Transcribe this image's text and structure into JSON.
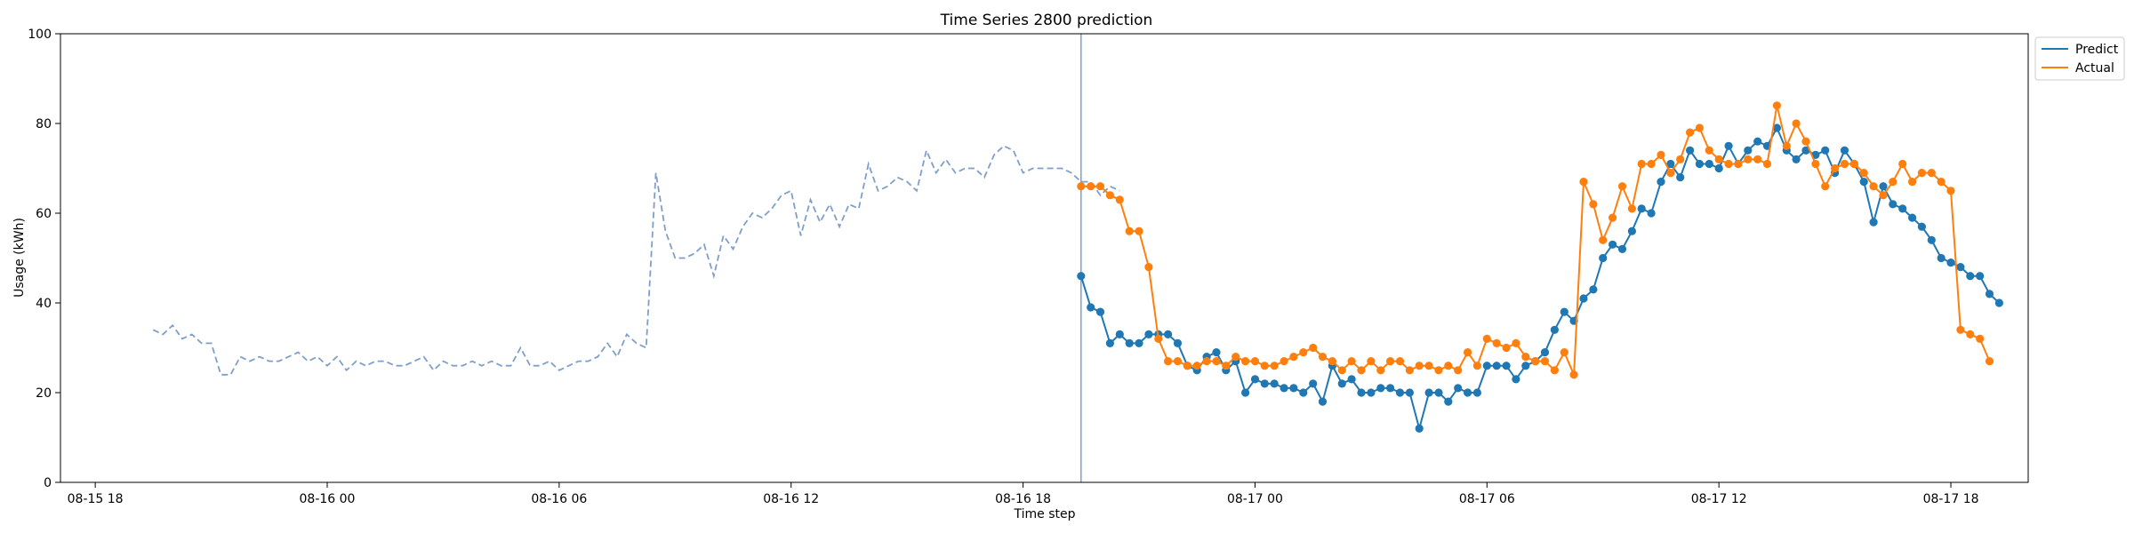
{
  "chart_data": {
    "type": "line",
    "title": "Time Series 2800 prediction",
    "xlabel": "Time step",
    "ylabel": "Usage (kWh)",
    "ylim": [
      0,
      100
    ],
    "yticks": [
      0,
      20,
      40,
      60,
      80,
      100
    ],
    "x_range": [
      "08-15 17:06",
      "08-17 20:00"
    ],
    "xticks": [
      {
        "time": "08-15 18:00",
        "label": "08-15 18"
      },
      {
        "time": "08-16 00:00",
        "label": "08-16 00"
      },
      {
        "time": "08-16 06:00",
        "label": "08-16 06"
      },
      {
        "time": "08-16 12:00",
        "label": "08-16 12"
      },
      {
        "time": "08-16 18:00",
        "label": "08-16 18"
      },
      {
        "time": "08-17 00:00",
        "label": "08-17 00"
      },
      {
        "time": "08-17 06:00",
        "label": "08-17 06"
      },
      {
        "time": "08-17 12:00",
        "label": "08-17 12"
      },
      {
        "time": "08-17 18:00",
        "label": "08-17 18"
      }
    ],
    "grid": false,
    "legend_position": "outside top-right",
    "split_time": "08-16 19:30",
    "history": {
      "start": "08-15 19:30",
      "step_minutes": 15,
      "style": "dashed",
      "color": "#7f9fc8",
      "values": [
        34,
        33,
        35,
        32,
        33,
        31,
        31,
        24,
        24,
        28,
        27,
        28,
        27,
        27,
        28,
        29,
        27,
        28,
        26,
        28,
        25,
        27,
        26,
        27,
        27,
        26,
        26,
        27,
        28,
        25,
        27,
        26,
        26,
        27,
        26,
        27,
        26,
        26,
        30,
        26,
        26,
        27,
        25,
        26,
        27,
        27,
        28,
        31,
        28,
        33,
        31,
        30,
        69,
        56,
        50,
        50,
        51,
        53,
        46,
        55,
        52,
        57,
        60,
        59,
        61,
        64,
        65,
        55,
        63,
        58,
        62,
        57,
        62,
        61,
        71,
        65,
        66,
        68,
        67,
        65,
        74,
        69,
        72,
        69,
        70,
        70,
        68,
        73,
        75,
        74,
        69,
        70,
        70,
        70,
        70,
        69,
        67,
        67,
        64,
        66,
        65
      ]
    },
    "series": [
      {
        "name": "Predict",
        "color": "#1f77b4",
        "start": "08-16 19:30",
        "step_minutes": 15,
        "values": [
          46,
          39,
          38,
          31,
          33,
          31,
          31,
          33,
          33,
          33,
          31,
          26,
          25,
          28,
          29,
          25,
          27,
          20,
          23,
          22,
          22,
          21,
          21,
          20,
          22,
          18,
          26,
          22,
          23,
          20,
          20,
          21,
          21,
          20,
          20,
          12,
          20,
          20,
          18,
          21,
          20,
          20,
          26,
          26,
          26,
          23,
          26,
          27,
          29,
          34,
          38,
          36,
          41,
          43,
          50,
          53,
          52,
          56,
          61,
          60,
          67,
          71,
          68,
          74,
          71,
          71,
          70,
          75,
          71,
          74,
          76,
          75,
          79,
          74,
          72,
          74,
          73,
          74,
          69,
          74,
          71,
          67,
          58,
          66,
          62,
          61,
          59,
          57,
          54,
          50,
          49,
          48,
          46,
          46,
          42,
          40
        ]
      },
      {
        "name": "Actual",
        "color": "#ff7f0e",
        "start": "08-16 19:30",
        "step_minutes": 15,
        "values": [
          66,
          66,
          66,
          64,
          63,
          56,
          56,
          48,
          32,
          27,
          27,
          26,
          26,
          27,
          27,
          26,
          28,
          27,
          27,
          26,
          26,
          27,
          28,
          29,
          30,
          28,
          27,
          25,
          27,
          25,
          27,
          25,
          27,
          27,
          25,
          26,
          26,
          25,
          26,
          25,
          29,
          26,
          32,
          31,
          30,
          31,
          28,
          27,
          27,
          25,
          29,
          24,
          67,
          62,
          54,
          59,
          66,
          61,
          71,
          71,
          73,
          69,
          72,
          78,
          79,
          74,
          72,
          71,
          71,
          72,
          72,
          71,
          84,
          75,
          80,
          76,
          71,
          66,
          70,
          71,
          71,
          69,
          66,
          64,
          67,
          71,
          67,
          69,
          69,
          67,
          65,
          34,
          33,
          32,
          27
        ]
      }
    ]
  }
}
